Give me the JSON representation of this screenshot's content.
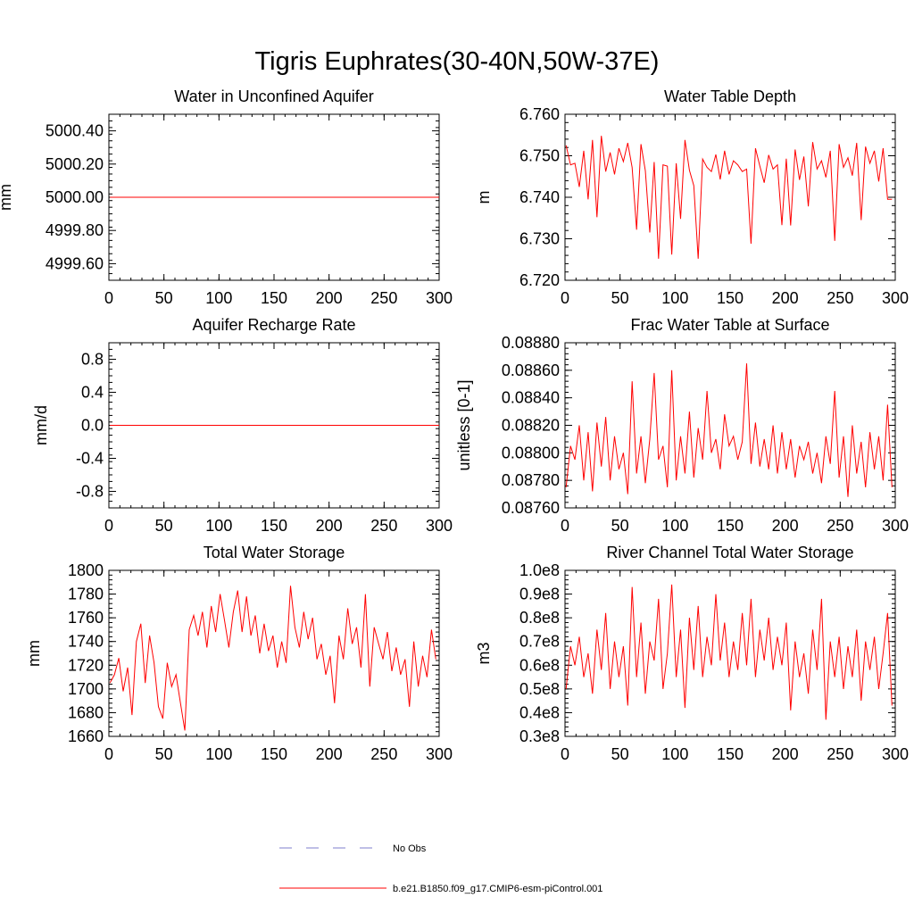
{
  "figure_title": "Tigris Euphrates(30-40N,50W-37E)",
  "legend": {
    "entries": [
      {
        "label": "No Obs",
        "color": "#7f7fcc",
        "style": "dashed"
      },
      {
        "label": "b.e21.B1850.f09_g17.CMIP6-esm-piControl.001",
        "color": "#ff0000",
        "style": "solid"
      }
    ]
  },
  "chart_data": [
    {
      "id": "unconfined-aquifer",
      "type": "line",
      "title": "Water in Unconfined Aquifer",
      "ylabel": "mm",
      "xlim": [
        0,
        300
      ],
      "ylim": [
        4999.5,
        5000.5
      ],
      "xticks": [
        0,
        50,
        100,
        150,
        200,
        250,
        300
      ],
      "xtick_labels": [
        "0",
        "50",
        "100",
        "150",
        "200",
        "250",
        "300"
      ],
      "yticks": [
        4999.6,
        4999.8,
        5000.0,
        5000.2,
        5000.4
      ],
      "ytick_labels": [
        "4999.60",
        "4999.80",
        "5000.00",
        "5000.20",
        "5000.40"
      ],
      "series": [
        {
          "name": "b.e21.B1850.f09_g17.CMIP6-esm-piControl.001",
          "color": "#ff0000",
          "x": [
            1,
            300
          ],
          "values": [
            5000.0,
            5000.0
          ]
        }
      ]
    },
    {
      "id": "water-table-depth",
      "type": "line",
      "title": "Water Table Depth",
      "ylabel": "m",
      "xlim": [
        0,
        300
      ],
      "ylim": [
        6.72,
        6.76
      ],
      "xticks": [
        0,
        50,
        100,
        150,
        200,
        250,
        300
      ],
      "xtick_labels": [
        "0",
        "50",
        "100",
        "150",
        "200",
        "250",
        "300"
      ],
      "yticks": [
        6.72,
        6.73,
        6.74,
        6.75,
        6.76
      ],
      "ytick_labels": [
        "6.720",
        "6.730",
        "6.740",
        "6.750",
        "6.760"
      ],
      "series": [
        {
          "name": "b.e21.B1850.f09_g17.CMIP6-esm-piControl.001",
          "color": "#ff0000",
          "x_start": 1,
          "x_step": 4,
          "values": [
            6.7525,
            6.7478,
            6.7482,
            6.7425,
            6.7512,
            6.7395,
            6.7538,
            6.7352,
            6.7548,
            6.7462,
            6.7508,
            6.7455,
            6.7518,
            6.7486,
            6.7531,
            6.7472,
            6.7322,
            6.7528,
            6.7464,
            6.7315,
            6.7485,
            6.7252,
            6.7478,
            6.7475,
            6.7262,
            6.7482,
            6.7348,
            6.7538,
            6.7465,
            6.7428,
            6.7252,
            6.7492,
            6.7472,
            6.7462,
            6.7503,
            6.7443,
            6.7512,
            6.7455,
            6.7488,
            6.7478,
            6.7462,
            6.7468,
            6.7288,
            6.7518,
            6.7475,
            6.7435,
            6.7502,
            6.7468,
            6.7478,
            6.7333,
            6.7493,
            6.7332,
            6.7515,
            6.7442,
            6.7498,
            6.7378,
            6.7533,
            6.7468,
            6.7488,
            6.7448,
            6.7512,
            6.7295,
            6.7528,
            6.7472,
            6.7495,
            6.7452,
            6.7531,
            6.7345,
            6.7522,
            6.7482,
            6.7512,
            6.7438,
            6.7518,
            6.7395,
            6.7395
          ]
        }
      ]
    },
    {
      "id": "aquifer-recharge-rate",
      "type": "line",
      "title": "Aquifer Recharge Rate",
      "ylabel": "mm/d",
      "xlim": [
        0,
        300
      ],
      "ylim": [
        -1.0,
        1.0
      ],
      "xticks": [
        0,
        50,
        100,
        150,
        200,
        250,
        300
      ],
      "xtick_labels": [
        "0",
        "50",
        "100",
        "150",
        "200",
        "250",
        "300"
      ],
      "yticks": [
        -0.8,
        -0.4,
        0.0,
        0.4,
        0.8
      ],
      "ytick_labels": [
        "-0.8",
        "-0.4",
        "0.0",
        "0.4",
        "0.8"
      ],
      "series": [
        {
          "name": "b.e21.B1850.f09_g17.CMIP6-esm-piControl.001",
          "color": "#ff0000",
          "x": [
            1,
            300
          ],
          "values": [
            0.0,
            0.0
          ]
        }
      ]
    },
    {
      "id": "frac-water-table-surface",
      "type": "line",
      "title": "Frac Water Table at Surface",
      "ylabel": "unitless [0-1]",
      "xlim": [
        0,
        300
      ],
      "ylim": [
        0.0876,
        0.0888
      ],
      "xticks": [
        0,
        50,
        100,
        150,
        200,
        250,
        300
      ],
      "xtick_labels": [
        "0",
        "50",
        "100",
        "150",
        "200",
        "250",
        "300"
      ],
      "yticks": [
        0.0876,
        0.0878,
        0.088,
        0.0882,
        0.0884,
        0.0886,
        0.0888
      ],
      "ytick_labels": [
        "0.08760",
        "0.08780",
        "0.08800",
        "0.08820",
        "0.08840",
        "0.08860",
        "0.08880"
      ],
      "series": [
        {
          "name": "b.e21.B1850.f09_g17.CMIP6-esm-piControl.001",
          "color": "#ff0000",
          "x_start": 1,
          "x_step": 4,
          "values": [
            0.08775,
            0.08805,
            0.08795,
            0.0882,
            0.0878,
            0.08815,
            0.08772,
            0.08822,
            0.0879,
            0.08826,
            0.0878,
            0.08812,
            0.08788,
            0.088,
            0.0877,
            0.08852,
            0.08785,
            0.08812,
            0.08778,
            0.0881,
            0.08858,
            0.08795,
            0.08805,
            0.08775,
            0.0886,
            0.0878,
            0.08812,
            0.08785,
            0.0883,
            0.08782,
            0.08818,
            0.08795,
            0.08845,
            0.088,
            0.0881,
            0.08788,
            0.08828,
            0.08805,
            0.08812,
            0.08795,
            0.08808,
            0.08865,
            0.08792,
            0.08822,
            0.0879,
            0.0881,
            0.08788,
            0.0882,
            0.08785,
            0.08815,
            0.08788,
            0.0881,
            0.08782,
            0.08805,
            0.08795,
            0.08808,
            0.08785,
            0.088,
            0.08778,
            0.08812,
            0.08792,
            0.08845,
            0.08782,
            0.08812,
            0.08768,
            0.0882,
            0.08785,
            0.08808,
            0.08775,
            0.08815,
            0.08788,
            0.08812,
            0.0878,
            0.08835,
            0.08775
          ]
        }
      ]
    },
    {
      "id": "total-water-storage",
      "type": "line",
      "title": "Total Water Storage",
      "ylabel": "mm",
      "xlim": [
        0,
        300
      ],
      "ylim": [
        1660,
        1800
      ],
      "xticks": [
        0,
        50,
        100,
        150,
        200,
        250,
        300
      ],
      "xtick_labels": [
        "0",
        "50",
        "100",
        "150",
        "200",
        "250",
        "300"
      ],
      "yticks": [
        1660,
        1680,
        1700,
        1720,
        1740,
        1760,
        1780,
        1800
      ],
      "ytick_labels": [
        "1660",
        "1680",
        "1700",
        "1720",
        "1740",
        "1760",
        "1780",
        "1800"
      ],
      "series": [
        {
          "name": "b.e21.B1850.f09_g17.CMIP6-esm-piControl.001",
          "color": "#ff0000",
          "x_start": 1,
          "x_step": 4,
          "values": [
            1705,
            1712,
            1726,
            1698,
            1718,
            1678,
            1740,
            1755,
            1705,
            1745,
            1722,
            1685,
            1675,
            1722,
            1702,
            1712,
            1688,
            1665,
            1750,
            1762,
            1745,
            1765,
            1735,
            1770,
            1748,
            1780,
            1758,
            1735,
            1765,
            1783,
            1748,
            1778,
            1745,
            1762,
            1730,
            1755,
            1732,
            1745,
            1718,
            1740,
            1722,
            1787,
            1752,
            1735,
            1765,
            1742,
            1760,
            1725,
            1738,
            1712,
            1728,
            1688,
            1745,
            1725,
            1768,
            1738,
            1752,
            1718,
            1780,
            1702,
            1752,
            1738,
            1725,
            1748,
            1715,
            1735,
            1712,
            1725,
            1685,
            1740,
            1702,
            1728,
            1710,
            1750,
            1725
          ]
        }
      ]
    },
    {
      "id": "river-channel-storage",
      "type": "line",
      "title": "River Channel Total Water Storage",
      "ylabel": "m3",
      "xlim": [
        0,
        300
      ],
      "ylim": [
        30000000,
        100000000
      ],
      "xticks": [
        0,
        50,
        100,
        150,
        200,
        250,
        300
      ],
      "xtick_labels": [
        "0",
        "50",
        "100",
        "150",
        "200",
        "250",
        "300"
      ],
      "yticks": [
        30000000,
        40000000,
        50000000,
        60000000,
        70000000,
        80000000,
        90000000,
        100000000
      ],
      "ytick_labels": [
        "0.3e8",
        "0.4e8",
        "0.5e8",
        "0.6e8",
        "0.7e8",
        "0.8e8",
        "0.9e8",
        "1.0e8"
      ],
      "series": [
        {
          "name": "b.e21.B1850.f09_g17.CMIP6-esm-piControl.001",
          "color": "#ff0000",
          "x_start": 1,
          "x_step": 4,
          "values": [
            50000000,
            68000000,
            60000000,
            72000000,
            55000000,
            65000000,
            48000000,
            75000000,
            58000000,
            82000000,
            50000000,
            70000000,
            55000000,
            68000000,
            43000000,
            93000000,
            55000000,
            78000000,
            48000000,
            70000000,
            62000000,
            88000000,
            50000000,
            65000000,
            94000000,
            55000000,
            75000000,
            42000000,
            80000000,
            58000000,
            85000000,
            55000000,
            72000000,
            60000000,
            90000000,
            62000000,
            78000000,
            55000000,
            70000000,
            58000000,
            82000000,
            60000000,
            88000000,
            55000000,
            75000000,
            62000000,
            80000000,
            58000000,
            72000000,
            60000000,
            78000000,
            41000000,
            70000000,
            55000000,
            65000000,
            48000000,
            75000000,
            58000000,
            88000000,
            37000000,
            70000000,
            55000000,
            72000000,
            50000000,
            68000000,
            55000000,
            75000000,
            45000000,
            70000000,
            58000000,
            72000000,
            50000000,
            65000000,
            82000000,
            43000000
          ]
        }
      ]
    }
  ]
}
